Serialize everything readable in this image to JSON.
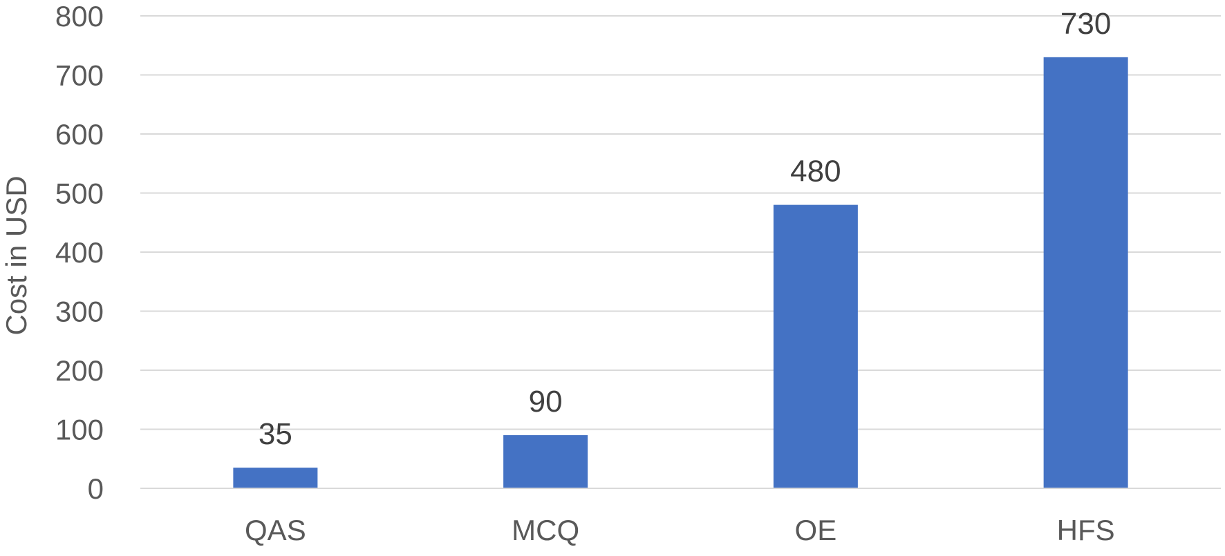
{
  "chart_data": {
    "type": "bar",
    "categories": [
      "QAS",
      "MCQ",
      "OE",
      "HFS"
    ],
    "values": [
      35,
      90,
      480,
      730
    ],
    "data_labels": [
      "35",
      "90",
      "480",
      "730"
    ],
    "title": "",
    "xlabel": "",
    "ylabel": "Cost in USD",
    "ylim": [
      0,
      800
    ],
    "yticks": [
      0,
      100,
      200,
      300,
      400,
      500,
      600,
      700,
      800
    ],
    "ytick_labels": [
      "0",
      "100",
      "200",
      "300",
      "400",
      "500",
      "600",
      "700",
      "800"
    ],
    "grid": "horizontal",
    "legend": "none",
    "bar_color": "#4472c4"
  }
}
